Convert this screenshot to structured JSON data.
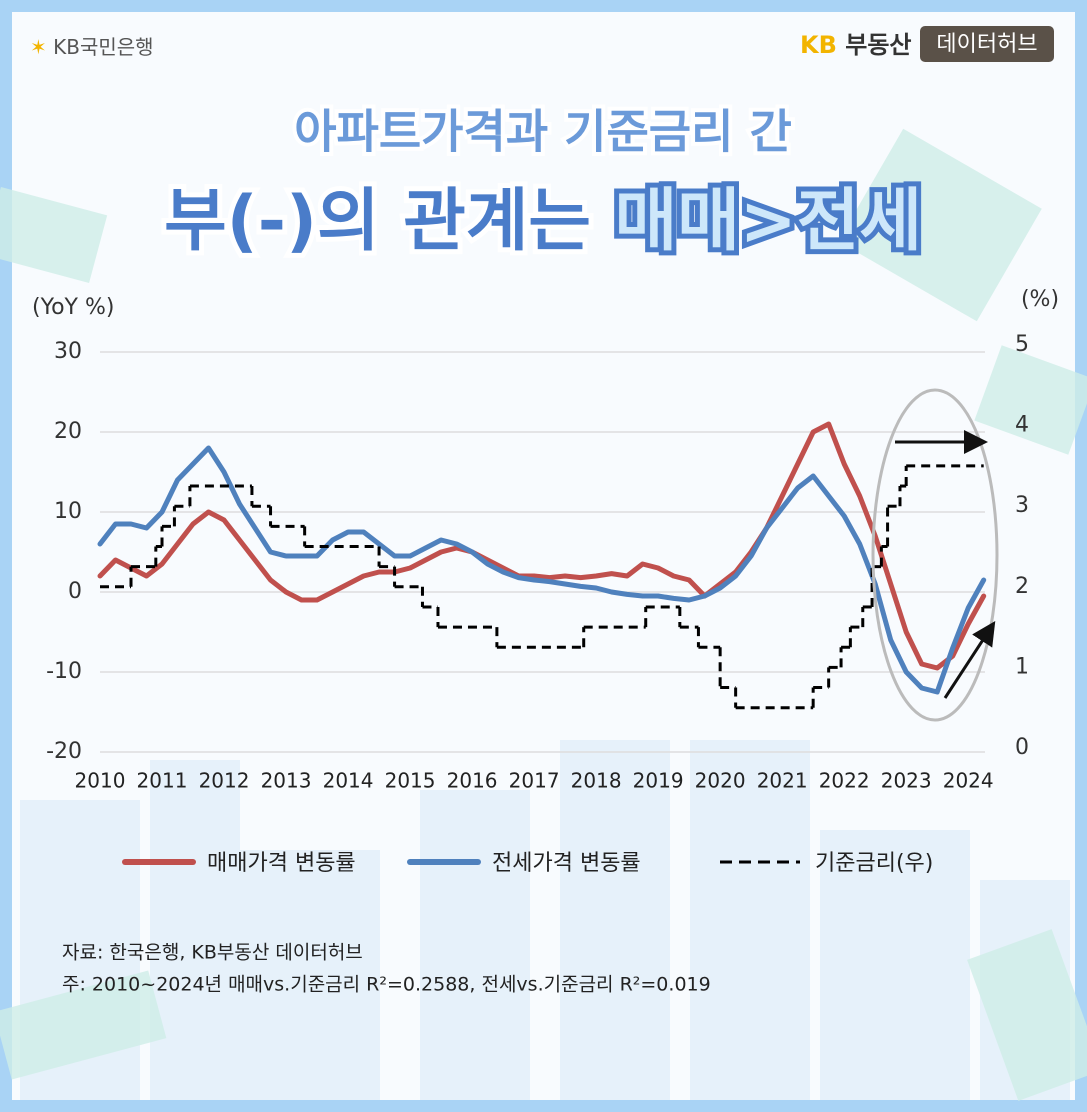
{
  "header": {
    "bank": "KB국민은행",
    "brand_kb": "KB",
    "brand_name": "부동산",
    "brand_tag": "데이터허브"
  },
  "chart_data": {
    "type": "line",
    "title": "아파트가격과 기준금리 간",
    "subtitle": "부(-)의 관계는 ",
    "subtitle_highlight": "매매>전세",
    "y_label": "(YoY %)",
    "y2_label": "(%)",
    "xlim": [
      2010,
      2024.4
    ],
    "xticks": [
      2010,
      2011,
      2012,
      2013,
      2014,
      2015,
      2016,
      2017,
      2018,
      2019,
      2020,
      2021,
      2022,
      2023,
      2024
    ],
    "ylim": [
      -20,
      30
    ],
    "yticks": [
      -20,
      -10,
      0,
      10,
      20,
      30
    ],
    "y2lim": [
      0,
      5
    ],
    "y2ticks": [
      0,
      1,
      2,
      3,
      4,
      5
    ],
    "grid": true,
    "x": [
      2010,
      2010.25,
      2010.5,
      2010.75,
      2011,
      2011.25,
      2011.5,
      2011.75,
      2012,
      2012.25,
      2012.5,
      2012.75,
      2013,
      2013.25,
      2013.5,
      2013.75,
      2014,
      2014.25,
      2014.5,
      2014.75,
      2015,
      2015.25,
      2015.5,
      2015.75,
      2016,
      2016.25,
      2016.5,
      2016.75,
      2017,
      2017.25,
      2017.5,
      2017.75,
      2018,
      2018.25,
      2018.5,
      2018.75,
      2019,
      2019.25,
      2019.5,
      2019.75,
      2020,
      2020.25,
      2020.5,
      2020.75,
      2021,
      2021.25,
      2021.5,
      2021.75,
      2022,
      2022.25,
      2022.5,
      2022.75,
      2023,
      2023.25,
      2023.5,
      2023.75,
      2024,
      2024.25
    ],
    "series": [
      {
        "name": "매매가격 변동률",
        "color": "#c0504d",
        "values": [
          2,
          4,
          3,
          2,
          3.5,
          6,
          8.5,
          10,
          9,
          6.5,
          4,
          1.5,
          0,
          -1,
          -1,
          0,
          1,
          2,
          2.5,
          2.5,
          3,
          4,
          5,
          5.5,
          5,
          4,
          3,
          2,
          2,
          1.8,
          2,
          1.8,
          2,
          2.3,
          2,
          3.5,
          3,
          2,
          1.5,
          -0.5,
          1,
          2.5,
          5,
          8,
          12,
          16,
          20,
          21,
          16,
          12,
          7,
          1,
          -5,
          -9,
          -9.5,
          -8,
          -4,
          -0.5
        ]
      },
      {
        "name": "전세가격 변동률",
        "color": "#4f81bd",
        "values": [
          6,
          8.5,
          8.5,
          8,
          10,
          14,
          16,
          18,
          15,
          11,
          8,
          5,
          4.5,
          4.5,
          4.5,
          6.5,
          7.5,
          7.5,
          6,
          4.5,
          4.5,
          5.5,
          6.5,
          6,
          5,
          3.5,
          2.5,
          1.8,
          1.5,
          1.3,
          1,
          0.7,
          0.5,
          0,
          -0.3,
          -0.5,
          -0.5,
          -0.8,
          -1,
          -0.5,
          0.5,
          2,
          4.5,
          8,
          10.5,
          13,
          14.5,
          12,
          9.5,
          6,
          1,
          -6,
          -10,
          -12,
          -12.5,
          -7,
          -2,
          1.5
        ]
      },
      {
        "name": "기준금리(우)",
        "color": "#000000",
        "axis": "y2",
        "step": true,
        "dashed": true,
        "x": [
          2010,
          2010.5,
          2010.9,
          2011,
          2011.2,
          2011.45,
          2012.45,
          2012.75,
          2013.3,
          2014.5,
          2014.75,
          2015.2,
          2015.45,
          2016.4,
          2017.8,
          2018.8,
          2019.35,
          2019.65,
          2020,
          2020.25,
          2021.5,
          2021.75,
          2021.95,
          2022.1,
          2022.3,
          2022.45,
          2022.6,
          2022.7,
          2022.9,
          2023
        ],
        "values": [
          2,
          2.25,
          2.5,
          2.75,
          3,
          3.25,
          3,
          2.75,
          2.5,
          2.25,
          2,
          1.75,
          1.5,
          1.25,
          1.5,
          1.75,
          1.5,
          1.25,
          0.75,
          0.5,
          0.75,
          1,
          1.25,
          1.5,
          1.75,
          2.25,
          2.5,
          3,
          3.25,
          3.5
        ]
      }
    ],
    "notes": [
      "자료: 한국은행, KB부동산 데이터허브",
      "주: 2010~2024년 매매vs.기준금리 R²=0.2588, 전세vs.기준금리 R²=0.019"
    ]
  }
}
